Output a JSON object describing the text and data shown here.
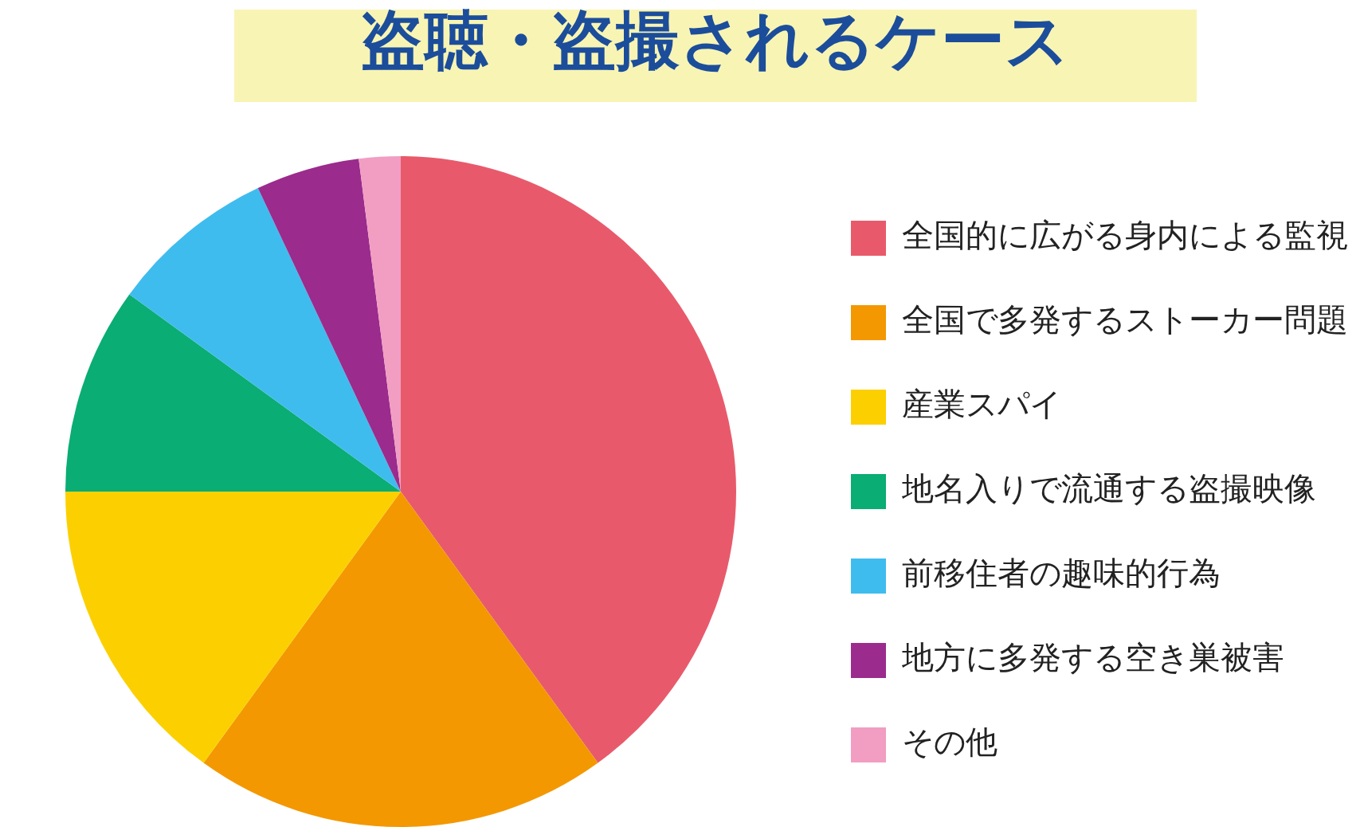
{
  "chart_data": {
    "type": "pie",
    "title": "盗聴・盗撮されるケース",
    "categories": [
      "全国的に広がる身内による監視",
      "全国で多発するストーカー問題",
      "産業スパイ",
      "地名入りで流通する盗撮映像",
      "前移住者の趣味的行為",
      "地方に多発する空き巣被害",
      "その他"
    ],
    "values": [
      40,
      20,
      15,
      10,
      8,
      5,
      2
    ],
    "colors": [
      "#e85a6b",
      "#f39800",
      "#fcd000",
      "#0aad73",
      "#3fbcee",
      "#9b2b8c",
      "#f19ec2"
    ],
    "legend": "right"
  }
}
